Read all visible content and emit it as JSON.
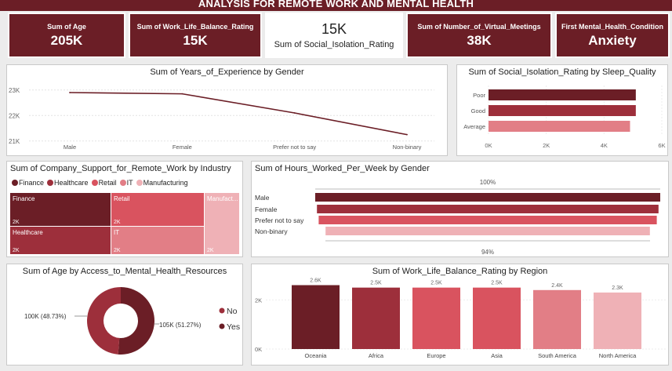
{
  "header": {
    "title": "ANALYSIS FOR REMOTE WORK AND MENTAL HEALTH"
  },
  "kpis": {
    "age": {
      "label": "Sum of Age",
      "value": "205K"
    },
    "wlb": {
      "label": "Sum of Work_Life_Balance_Rating",
      "value": "15K"
    },
    "iso": {
      "label": "Sum of Social_Isolation_Rating",
      "value": "15K"
    },
    "meet": {
      "label": "Sum of Number_of_Virtual_Meetings",
      "value": "38K"
    },
    "cond": {
      "label": "First Mental_Health_Condition",
      "value": "Anxiety"
    }
  },
  "colors": {
    "dark": "#6b1e26",
    "mid": "#9d2f3b",
    "red": "#d9535f",
    "pink": "#e27e86",
    "light": "#efb1b6",
    "line": "#6b1e26"
  },
  "charts": {
    "experience": {
      "title": "Sum of Years_of_Experience by Gender",
      "yticks": [
        "23K",
        "22K",
        "21K"
      ],
      "chart_data": {
        "type": "line",
        "x": [
          "Male",
          "Female",
          "Prefer not to say",
          "Non-binary"
        ],
        "values": [
          22900,
          22850,
          22100,
          21250
        ],
        "ylim": [
          20900,
          23300
        ]
      }
    },
    "isolation": {
      "title": "Sum of Social_Isolation_Rating by Sleep_Quality",
      "xticks": [
        "0K",
        "2K",
        "4K",
        "6K"
      ],
      "chart_data": {
        "type": "bar",
        "orientation": "horizontal",
        "categories": [
          "Poor",
          "Good",
          "Average"
        ],
        "values": [
          5100,
          5100,
          4900
        ],
        "xlim": [
          0,
          6000
        ]
      }
    },
    "company": {
      "title": "Sum of Company_Support_for_Remote_Work by Industry",
      "legend": [
        "Finance",
        "Healthcare",
        "Retail",
        "IT",
        "Manufacturing"
      ],
      "chart_data": {
        "type": "treemap",
        "categories": [
          "Finance",
          "Healthcare",
          "Retail",
          "IT",
          "Manufact..."
        ],
        "value_labels": [
          "2K",
          "2K",
          "2K",
          "2K",
          "2K"
        ]
      }
    },
    "hours": {
      "title": "Sum of Hours_Worked_Per_Week by Gender",
      "top_label": "100%",
      "bottom_label": "94%",
      "chart_data": {
        "type": "funnel",
        "categories": [
          "Male",
          "Female",
          "Prefer not to say",
          "Non-binary"
        ],
        "values": [
          100,
          99,
          98,
          94
        ]
      }
    },
    "access": {
      "title": "Sum of Age by Access_to_Mental_Health_Resources",
      "legend": [
        "No",
        "Yes"
      ],
      "chart_data": {
        "type": "pie",
        "donut": true,
        "categories": [
          "No",
          "Yes"
        ],
        "labels": [
          "100K (48.73%)",
          "105K (51.27%)"
        ],
        "values": [
          48.73,
          51.27
        ]
      }
    },
    "region": {
      "title": "Sum of Work_Life_Balance_Rating by Region",
      "yticks": [
        "2K",
        "0K"
      ],
      "chart_data": {
        "type": "bar",
        "categories": [
          "Oceania",
          "Africa",
          "Europe",
          "Asia",
          "South America",
          "North America"
        ],
        "values": [
          2600,
          2500,
          2500,
          2500,
          2400,
          2300
        ],
        "value_labels": [
          "2.6K",
          "2.5K",
          "2.5K",
          "2.5K",
          "2.4K",
          "2.3K"
        ],
        "ylim": [
          0,
          3000
        ]
      }
    }
  }
}
